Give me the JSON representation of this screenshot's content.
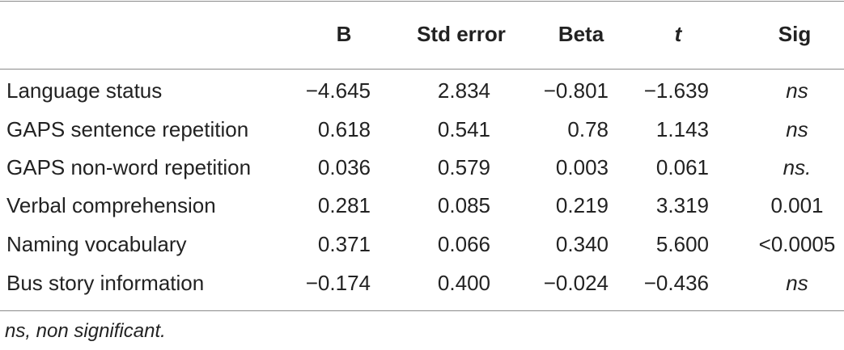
{
  "table": {
    "headers": [
      "B",
      "Std error",
      "Beta",
      "t",
      "Sig"
    ],
    "rows": [
      [
        "Language status",
        "−4.645",
        "2.834",
        "−0.801",
        "−1.639",
        "ns"
      ],
      [
        "GAPS sentence repetition",
        "0.618",
        "0.541",
        "0.78",
        "1.143",
        "ns"
      ],
      [
        "GAPS non-word repetition",
        "0.036",
        "0.579",
        "0.003",
        "0.061",
        "ns."
      ],
      [
        "Verbal comprehension",
        "0.281",
        "0.085",
        "0.219",
        "3.319",
        "0.001"
      ],
      [
        "Naming vocabulary",
        "0.371",
        "0.066",
        "0.340",
        "5.600",
        "<0.0005"
      ],
      [
        "Bus story information",
        "−0.174",
        "0.400",
        "−0.024",
        "−0.436",
        "ns"
      ]
    ],
    "footnote": "ns, non significant."
  }
}
